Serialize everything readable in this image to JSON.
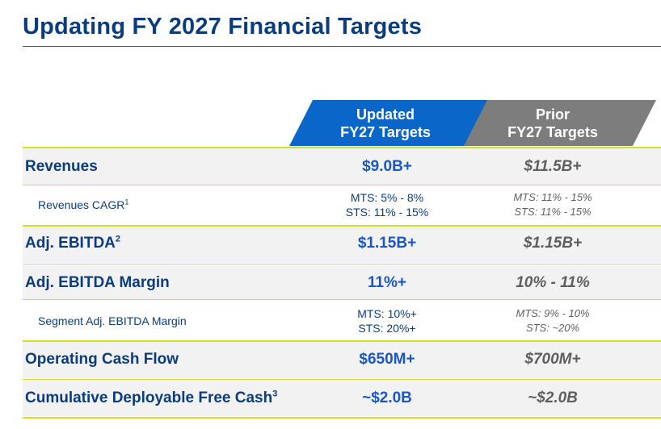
{
  "title": "Updating FY 2027 Financial Targets",
  "headers": {
    "updated": {
      "line1": "Updated",
      "line2": "FY27 Targets",
      "color": "#0a66c8"
    },
    "prior": {
      "line1": "Prior",
      "line2": "FY27 Targets",
      "color": "#7d7d7d"
    }
  },
  "rows": {
    "revenues": {
      "label": "Revenues",
      "updated": "$9.0B+",
      "prior": "$11.5B+"
    },
    "revenues_cagr": {
      "label": "Revenues CAGR",
      "footnote": "1",
      "updated_line1": "MTS: 5% - 8%",
      "updated_line2": "STS: 11% - 15%",
      "prior_line1": "MTS: 11% - 15%",
      "prior_line2": "STS: 11% - 15%"
    },
    "adj_ebitda": {
      "label": "Adj. EBITDA",
      "footnote": "2",
      "updated": "$1.15B+",
      "prior": "$1.15B+"
    },
    "adj_ebitda_margin": {
      "label": "Adj. EBITDA Margin",
      "updated": "11%+",
      "prior": "10% - 11%"
    },
    "segment_margin": {
      "label": "Segment Adj. EBITDA Margin",
      "updated_line1": "MTS: 10%+",
      "updated_line2": "STS: 20%+",
      "prior_line1": "MTS: 9% - 10%",
      "prior_line2": "STS: ~20%"
    },
    "operating_cash_flow": {
      "label": "Operating Cash Flow",
      "updated": "$650M+",
      "prior": "$700M+"
    },
    "deployable_free_cash": {
      "label": "Cumulative Deployable Free Cash",
      "footnote": "3",
      "updated": "~$2.0B",
      "prior": "~$2.0B"
    }
  },
  "colors": {
    "brand": "#0b3c7d",
    "accent_line": "#d7df23",
    "value_blue": "#1a56c4"
  }
}
